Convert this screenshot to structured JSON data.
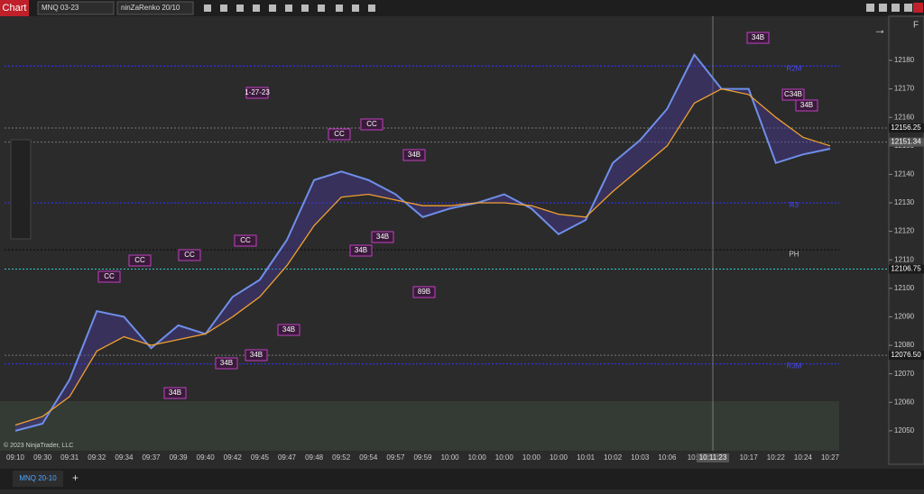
{
  "toolbar": {
    "tab": "Chart",
    "instrument": "MNQ 03-23",
    "bar_type": "ninZaRenko 20/10",
    "right_label": "F"
  },
  "footer": {
    "tab": "MNQ 20-10",
    "add": "+",
    "copyright": "© 2023 NinjaTrader, LLC"
  },
  "chart_data": {
    "type": "line",
    "categories": [
      "09:10",
      "09:30",
      "09:31",
      "09:32",
      "09:34",
      "09:37",
      "09:39",
      "09:40",
      "09:42",
      "09:45",
      "09:47",
      "09:48",
      "09:52",
      "09:54",
      "09:57",
      "09:59",
      "10:00",
      "10:00",
      "10:00",
      "10:00",
      "10:00",
      "10:01",
      "10:02",
      "10:03",
      "10:06",
      "10:0",
      null,
      "10:17",
      "10:22",
      "10:24",
      "10:27"
    ],
    "crosshair_label": "10:11:23",
    "series": [
      {
        "color": "#6f8fe8",
        "values": [
          12050,
          12052.5,
          12068,
          12092,
          12090,
          12079,
          12087,
          12084,
          12097,
          12103,
          12117,
          12138,
          12141,
          12138,
          12133,
          12125,
          12128,
          12130,
          12133,
          12128,
          12119,
          12124,
          12144,
          12152,
          12163,
          12182,
          12170,
          12170,
          12144,
          12147,
          12149
        ]
      },
      {
        "color": "#f0a030",
        "values": [
          12052,
          12055,
          12062,
          12078,
          12083,
          12080,
          12082,
          12084,
          12090,
          12097,
          12108,
          12122,
          12132,
          12133,
          12131,
          12129,
          12129,
          12130,
          12130,
          12129,
          12126,
          12125,
          12134,
          12142,
          12150,
          12165,
          12170,
          12168,
          12160,
          12153,
          12150
        ]
      }
    ],
    "ylim": [
      12043,
      12195.5
    ],
    "yticks": [
      12050,
      12060,
      12070,
      12080,
      12090,
      12100,
      12110,
      12120,
      12130,
      12140,
      12150,
      12160,
      12170,
      12180
    ],
    "price_markers": [
      12156.25,
      12151.34,
      12106.75,
      {
        "value": 12076.5,
        "label": "12076.50"
      }
    ],
    "levels": [
      {
        "value": 12178,
        "label": "R2M",
        "color": "#3030e0"
      },
      {
        "value": 12130,
        "label": "R3",
        "color": "#3030e0"
      },
      {
        "value": 12113.5,
        "label": "PH",
        "color": "#111111"
      },
      {
        "value": 12073.5,
        "label": "R3M",
        "color": "#3030e0"
      }
    ],
    "annotations": [
      "1-27-23",
      "CC",
      "CC",
      "CC",
      "CC",
      "CC",
      "CC",
      "34B",
      "34B",
      "34B",
      "34B",
      "34B",
      "34B",
      "34B",
      "34B",
      "34B",
      "C34B",
      "89B"
    ]
  }
}
